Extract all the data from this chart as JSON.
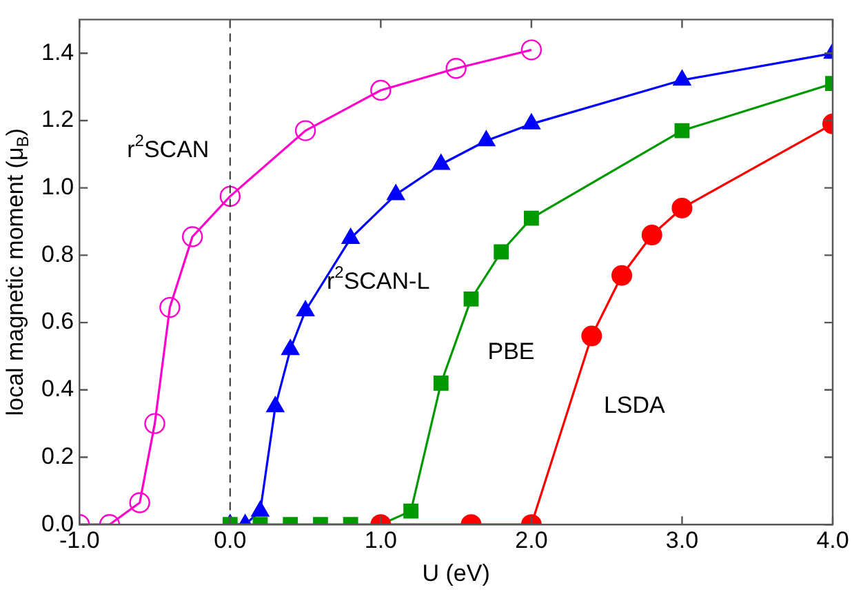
{
  "chart_data": {
    "type": "line",
    "xlabel": "U (eV)",
    "ylabel": "local magnetic moment (μ$_{B}$)",
    "xlim": [
      -1,
      4
    ],
    "xticks": [
      {
        "value": -1,
        "label": "-1.0"
      },
      {
        "value": 0,
        "label": "0.0"
      },
      {
        "value": 1,
        "label": "1.0"
      },
      {
        "value": 2,
        "label": "2.0"
      },
      {
        "value": 3,
        "label": "3.0"
      },
      {
        "value": 4,
        "label": "4.0"
      }
    ],
    "ylim": [
      0,
      1.5
    ],
    "yticks": [
      {
        "value": 0,
        "label": "0.0"
      },
      {
        "value": 0.2,
        "label": "0.2"
      },
      {
        "value": 0.4,
        "label": "0.4"
      },
      {
        "value": 0.6,
        "label": "0.6"
      },
      {
        "value": 0.8,
        "label": "0.8"
      },
      {
        "value": 1,
        "label": "1.0"
      },
      {
        "value": 1.2,
        "label": "1.2"
      },
      {
        "value": 1.4,
        "label": "1.4"
      }
    ],
    "grid": false,
    "legend": false,
    "line_style": "solid",
    "series": [
      {
        "name": "LSDA",
        "color": "#ff0000",
        "marker": "circle",
        "x": [
          1.0,
          1.6,
          2.0,
          2.4,
          2.6,
          2.8,
          3.0,
          4.0
        ],
        "values": [
          0,
          0,
          0,
          0.56,
          0.74,
          0.86,
          0.94,
          1.19
        ]
      },
      {
        "name": "PBE",
        "color": "#009900",
        "marker": "square",
        "x": [
          0,
          0.2,
          0.4,
          0.6,
          0.8,
          1.0,
          1.2,
          1.4,
          1.6,
          1.8,
          2.0,
          3.0,
          4.0
        ],
        "values": [
          0,
          0,
          0,
          0,
          0,
          0,
          0.04,
          0.42,
          0.67,
          0.81,
          0.91,
          1.17,
          1.31
        ]
      },
      {
        "name": "r$^{2}$SCAN-L",
        "color": "#0000ff",
        "marker": "triangle",
        "x": [
          0,
          0.1,
          0.2,
          0.3,
          0.4,
          0.5,
          0.8,
          1.1,
          1.4,
          1.7,
          2.0,
          3.0,
          4.0
        ],
        "values": [
          0,
          0,
          0.04,
          0.35,
          0.52,
          0.635,
          0.85,
          0.98,
          1.07,
          1.14,
          1.19,
          1.32,
          1.4
        ]
      },
      {
        "name": "r$^{2}$SCAN",
        "color": "#ff00cc",
        "marker": "circle-open",
        "x": [
          -1.0,
          -0.8,
          -0.6,
          -0.5,
          -0.4,
          -0.25,
          0,
          0.5,
          1.0,
          1.5,
          2.0
        ],
        "values": [
          0,
          0,
          0.065,
          0.3,
          0.645,
          0.855,
          0.975,
          1.17,
          1.29,
          1.355,
          1.41
        ]
      }
    ],
    "ref_lines": [
      {
        "axis": "x",
        "value": 0,
        "color": "#333333",
        "line_style": "dashed"
      }
    ]
  }
}
